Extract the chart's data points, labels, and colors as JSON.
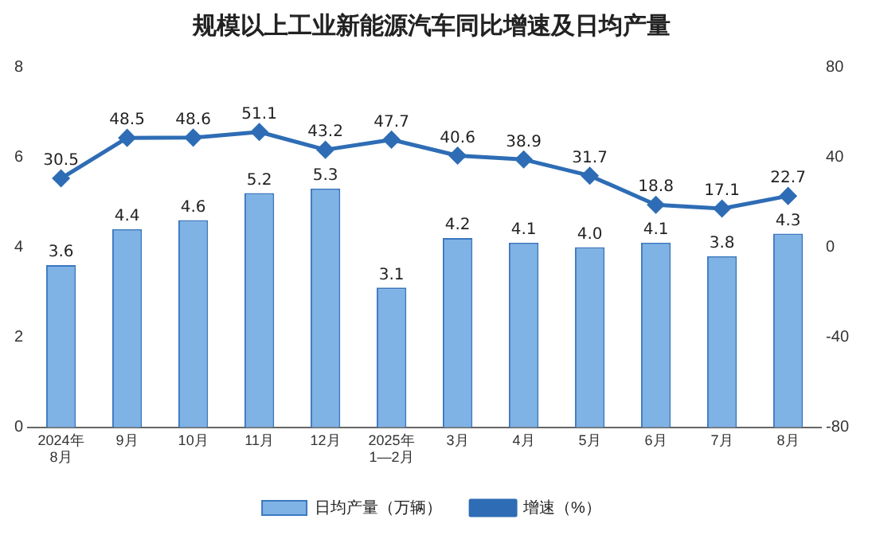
{
  "chart_data": {
    "type": "bar",
    "title": "规模以上工业新能源汽车同比增速及日均产量",
    "categories": [
      "2024年\n8月",
      "9月",
      "10月",
      "11月",
      "12月",
      "2025年\n1—2月",
      "3月",
      "4月",
      "5月",
      "6月",
      "7月",
      "8月"
    ],
    "series": [
      {
        "name": "日均产量（万辆）",
        "color": "#7fb2e5",
        "values": [
          3.6,
          4.4,
          4.6,
          5.2,
          5.3,
          3.1,
          4.2,
          4.1,
          4.0,
          4.1,
          3.8,
          4.3
        ],
        "value_labels": [
          "3.6",
          "4.4",
          "4.6",
          "5.2",
          "5.3",
          "3.1",
          "4.2",
          "4.1",
          "4.0",
          "4.1",
          "3.8",
          "4.3"
        ]
      },
      {
        "name": "增速（%）",
        "type": "line",
        "axis": "y2",
        "color": "#2e6db5",
        "marker": "diamond",
        "values": [
          30.5,
          48.5,
          48.6,
          51.1,
          43.2,
          47.7,
          40.6,
          38.9,
          31.7,
          18.8,
          17.1,
          22.7
        ]
      }
    ],
    "ylim": [
      0,
      8
    ],
    "yticks": [
      0,
      2,
      4,
      6,
      8
    ],
    "y2lim": [
      -80,
      80
    ],
    "y2ticks": [
      -80,
      -40,
      0,
      40,
      80
    ],
    "grid": false,
    "legend": "bottom",
    "data_labels": true
  }
}
